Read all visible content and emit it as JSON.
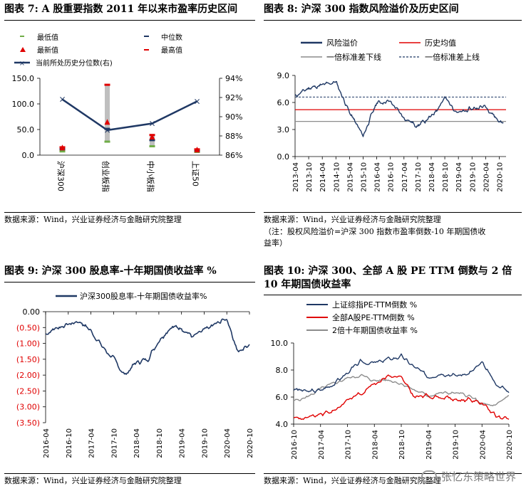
{
  "panels": {
    "p7": {
      "title": "图表 7:  A 股重要指数 2011 年以来市盈率历史区间",
      "source": "数据来源：Wind，兴业证券经济与金融研究院整理",
      "legend": [
        "最低值",
        "中位数",
        "最新值",
        "最高值",
        "当前所处历史分位数(右)"
      ]
    },
    "p8": {
      "title": "图表 8:  沪深 300 指数风险溢价及历史区间",
      "source": "数据来源：Wind，兴业证券经济与金融研究院整理",
      "note1": "（注：股权风险溢价=沪深 300 指数市盈率倒数-10 年期国债收",
      "note2": "益率）",
      "legend": [
        "风险溢价",
        "历史均值",
        "一倍标准差下线",
        "一倍标准差上线"
      ]
    },
    "p9": {
      "title": "图表 9:  沪深 300 股息率-十年期国债收益率  %",
      "source": "数据来源：Wind，兴业证券经济与金融研究院整理",
      "legend": [
        "沪深300股息率-十年期国债收益率%"
      ]
    },
    "p10": {
      "title1": "图表 10:  沪深 300、全部 A 股 PE TTM 倒数与 2 倍",
      "title2": "10 年期国债收益率",
      "source": "数据来源：Wind，兴业证券经济与金融研究院整理",
      "legend": [
        "上证综指PE-TTM倒数  %",
        "全部A股PE-TTM倒数  %",
        "2倍十年期国债收益率  %"
      ]
    }
  },
  "watermark": "张忆东策略世界",
  "colors": {
    "navy": "#1f3864",
    "red": "#e00000",
    "gray": "#8c8c8c",
    "green": "#70ad47",
    "bar": "#bfbfbf"
  },
  "chart_data": [
    {
      "type": "bar",
      "categories": [
        "沪深300",
        "创业板指",
        "中小板指",
        "上证50"
      ],
      "series": [
        {
          "name": "最低值",
          "values": [
            8,
            27,
            18,
            7
          ]
        },
        {
          "name": "中位数",
          "values": [
            12,
            52,
            30,
            10
          ]
        },
        {
          "name": "最新值",
          "values": [
            15,
            65,
            36,
            11
          ]
        },
        {
          "name": "最高值",
          "values": [
            16,
            138,
            40,
            12
          ]
        },
        {
          "name": "当前所处历史分位数(右)",
          "values": [
            91.8,
            88.6,
            89.3,
            91.6
          ]
        }
      ],
      "yticks": [
        "0.0",
        "50.0",
        "100.0",
        "150.0"
      ],
      "ylim": [
        0,
        150
      ],
      "y2ticks": [
        "86%",
        "88%",
        "90%",
        "92%",
        "94%"
      ],
      "y2lim": [
        86,
        94
      ]
    },
    {
      "type": "line",
      "xticks": [
        "2013-04",
        "2013-10",
        "2014-04",
        "2014-10",
        "2015-04",
        "2015-10",
        "2016-04",
        "2016-10",
        "2017-04",
        "2017-10",
        "2018-04",
        "2018-10",
        "2019-04",
        "2019-10",
        "2020-04",
        "2020-10"
      ],
      "yticks": [
        "0.0",
        "3.0",
        "6.0",
        "9.0"
      ],
      "ylim": [
        0,
        9
      ],
      "series": [
        {
          "name": "风险溢价",
          "x": [
            0,
            1,
            2,
            3,
            4,
            5,
            6,
            7,
            8,
            9,
            10,
            11,
            12,
            13,
            14,
            15,
            15.3
          ],
          "values": [
            6.7,
            7.6,
            7.9,
            8.3,
            4.9,
            2.3,
            6.0,
            6.1,
            4.3,
            3.4,
            4.4,
            6.5,
            4.8,
            5.3,
            5.6,
            3.9,
            3.7
          ]
        },
        {
          "name": "历史均值",
          "values": [
            5.2
          ]
        },
        {
          "name": "一倍标准差下线",
          "values": [
            3.9
          ]
        },
        {
          "name": "一倍标准差上线",
          "values": [
            6.6
          ]
        }
      ]
    },
    {
      "type": "line",
      "xticks": [
        "2016-04",
        "2016-10",
        "2017-04",
        "2017-10",
        "2018-04",
        "2018-10",
        "2019-04",
        "2019-10",
        "2020-04",
        "2020-10"
      ],
      "yticks": [
        "0.00",
        "(0.50)",
        "(1.00)",
        "(1.50)",
        "(2.00)",
        "(2.50)",
        "(3.00)",
        "(3.50)"
      ],
      "ylim": [
        -3.5,
        0
      ],
      "series": [
        {
          "name": "沪深300股息率-十年期国债收益率%",
          "x": [
            0,
            0.5,
            1,
            1.5,
            2,
            2.5,
            3,
            3.5,
            4,
            4.5,
            5,
            5.5,
            6,
            6.5,
            7,
            7.5,
            8,
            8.5,
            9
          ],
          "values": [
            -0.7,
            -0.5,
            -0.4,
            -0.3,
            -0.6,
            -1.1,
            -1.5,
            -2.0,
            -1.6,
            -1.5,
            -0.9,
            -0.5,
            -0.5,
            -0.8,
            -0.6,
            -0.4,
            -0.2,
            -1.3,
            -1.0
          ]
        }
      ]
    },
    {
      "type": "line",
      "xticks": [
        "2016-10",
        "2017-04",
        "2017-10",
        "2018-04",
        "2018-10",
        "2019-04",
        "2019-10",
        "2020-04",
        "2020-10"
      ],
      "yticks": [
        "4.0",
        "6.0",
        "8.0",
        "10.0"
      ],
      "ylim": [
        4,
        10
      ],
      "series": [
        {
          "name": "上证综指PE-TTM倒数  %",
          "x": [
            0,
            0.5,
            1,
            1.5,
            2,
            2.5,
            3,
            3.5,
            4,
            4.5,
            5,
            5.5,
            6,
            6.5,
            7,
            7.5,
            8
          ],
          "values": [
            6.6,
            6.4,
            6.5,
            7.0,
            7.8,
            8.6,
            8.5,
            8.8,
            9.0,
            8.2,
            7.5,
            7.8,
            7.6,
            7.7,
            8.5,
            7.0,
            6.4
          ]
        },
        {
          "name": "全部A股PE-TTM倒数  %",
          "x": [
            0,
            0.5,
            1,
            1.5,
            2,
            2.5,
            3,
            3.5,
            4,
            4.5,
            5,
            5.5,
            6,
            6.5,
            7,
            7.5,
            8
          ],
          "values": [
            4.5,
            4.4,
            4.7,
            5.0,
            5.8,
            6.3,
            7.0,
            7.6,
            7.4,
            6.0,
            6.1,
            6.0,
            5.8,
            5.8,
            5.6,
            4.6,
            4.3
          ]
        },
        {
          "name": "2倍十年期国债收益率  %",
          "x": [
            0,
            0.5,
            1,
            1.5,
            2,
            2.5,
            3,
            3.5,
            4,
            4.5,
            5,
            5.5,
            6,
            6.5,
            7,
            7.5,
            8
          ],
          "values": [
            5.7,
            6.0,
            6.6,
            7.0,
            7.4,
            7.6,
            7.2,
            7.3,
            7.0,
            6.5,
            6.1,
            6.3,
            6.3,
            6.1,
            5.5,
            5.3,
            6.2
          ]
        }
      ]
    }
  ]
}
